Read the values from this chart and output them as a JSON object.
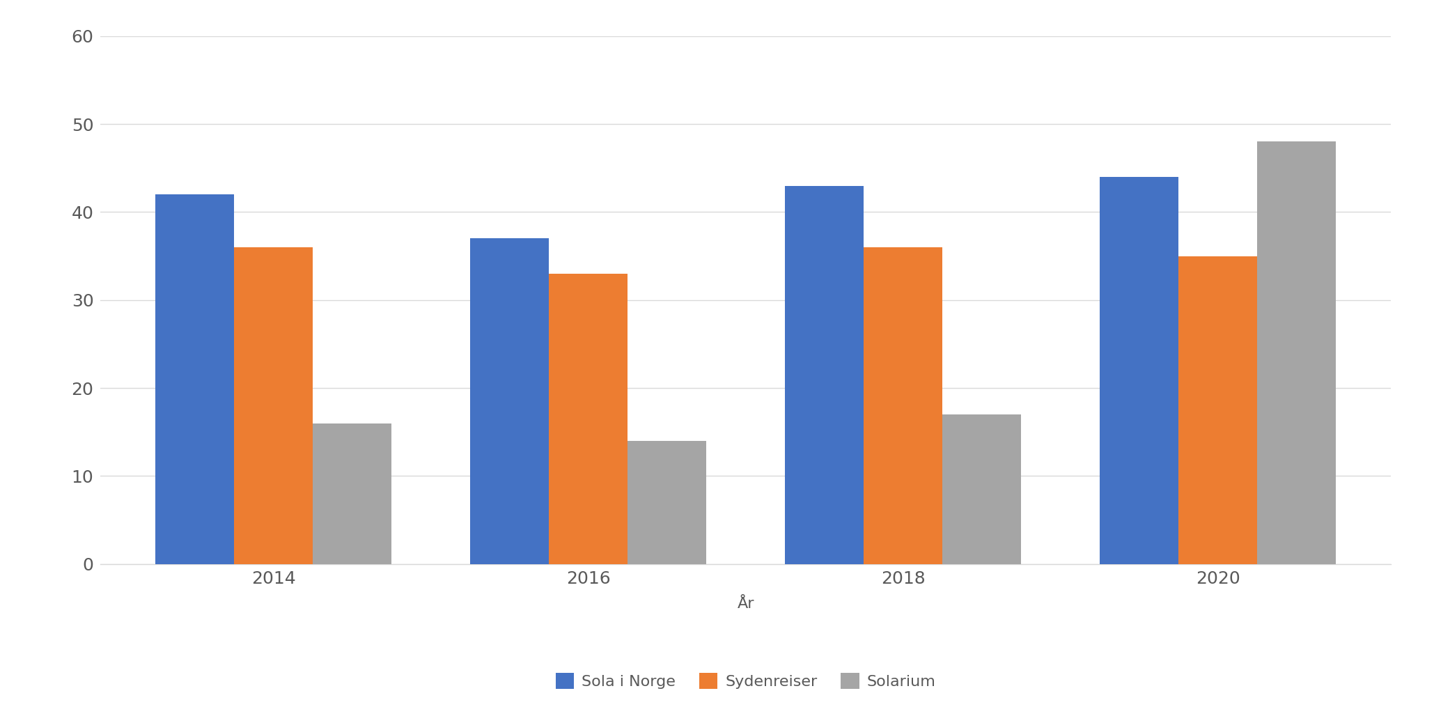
{
  "years": [
    "2014",
    "2016",
    "2018",
    "2020"
  ],
  "series": {
    "Sola i Norge": [
      42,
      37,
      43,
      44
    ],
    "Sydenreiser": [
      36,
      33,
      36,
      35
    ],
    "Solarium": [
      16,
      14,
      17,
      48
    ]
  },
  "colors": {
    "Sola i Norge": "#4472C4",
    "Sydenreiser": "#ED7D31",
    "Solarium": "#A5A5A5"
  },
  "xlabel": "År",
  "ylim": [
    0,
    60
  ],
  "yticks": [
    0,
    10,
    20,
    30,
    40,
    50,
    60
  ],
  "background_color": "#FFFFFF",
  "grid_color": "#D9D9D9",
  "bar_width": 0.25,
  "xlabel_fontsize": 16,
  "tick_fontsize": 18,
  "legend_fontsize": 16,
  "tick_color": "#595959",
  "spine_color": "#D9D9D9"
}
